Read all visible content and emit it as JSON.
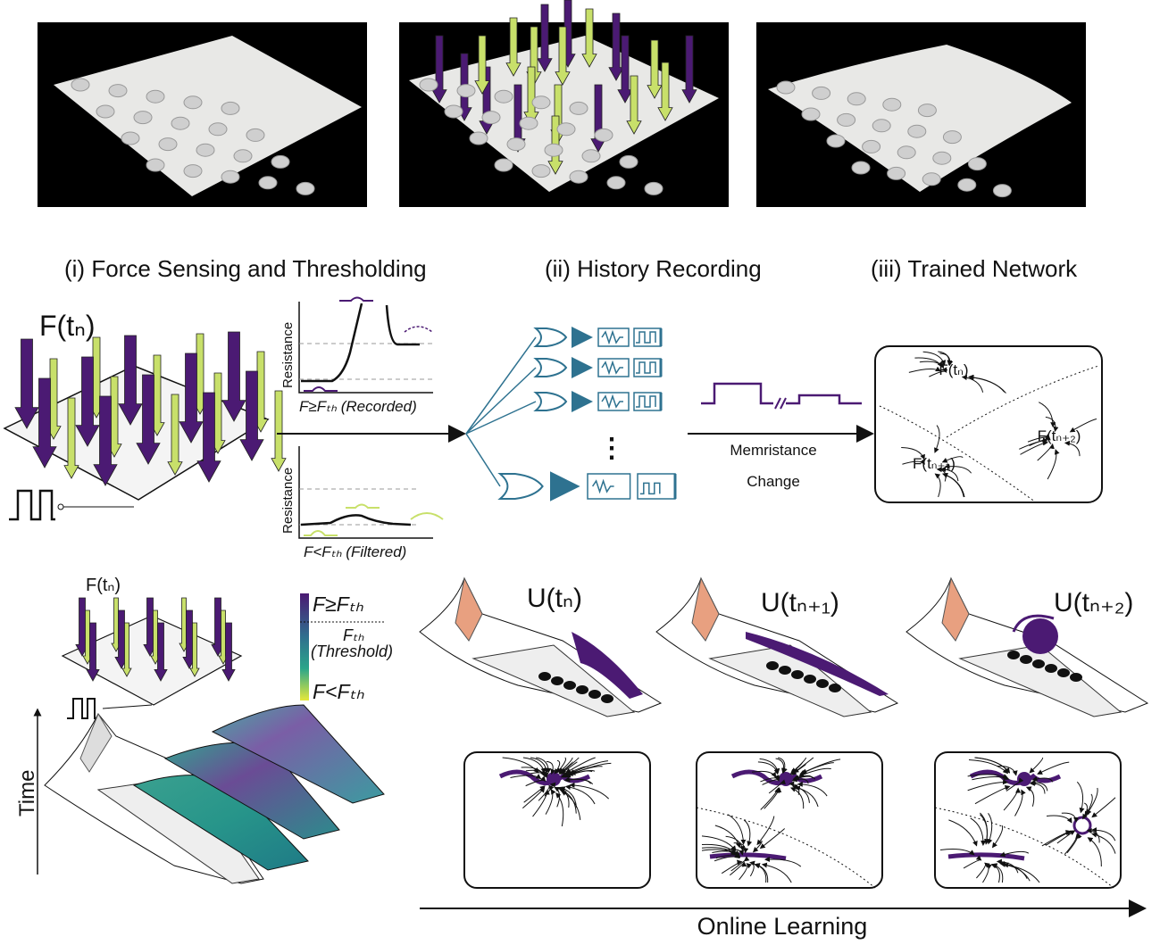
{
  "colors": {
    "purple": "#4b1a73",
    "yellow_green": "#c8e06a",
    "circuit_teal": "#2e7290",
    "photo_bg": "#000000"
  },
  "sections": {
    "force_sensing": "(i) Force Sensing and Thresholding",
    "history": "(ii) History Recording",
    "trained": "(iii) Trained Network"
  },
  "force_label": "F(tₙ)",
  "graphs": {
    "ylabel": "Resistance",
    "recorded_label": "F≥Fₜₕ (Recorded)",
    "filtered_label": "F<Fₜₕ (Filtered)"
  },
  "memristance": {
    "line1": "Memristance",
    "line2": "Change"
  },
  "network_nodes": [
    "F(tₙ)",
    "F(tₙ₊₁)",
    "F(tₙ₊₂)"
  ],
  "colorbar": {
    "top": "F≥Fₜₕ",
    "mid": "Fₜₕ",
    "mid_note": "(Threshold)",
    "bottom": "F<Fₜₕ"
  },
  "time_label": "Time",
  "wing_labels": [
    "U(tₙ)",
    "U(tₙ₊₁)",
    "U(tₙ₊₂)"
  ],
  "online_learning": "Online Learning",
  "small_force_label": "F(tₙ)"
}
